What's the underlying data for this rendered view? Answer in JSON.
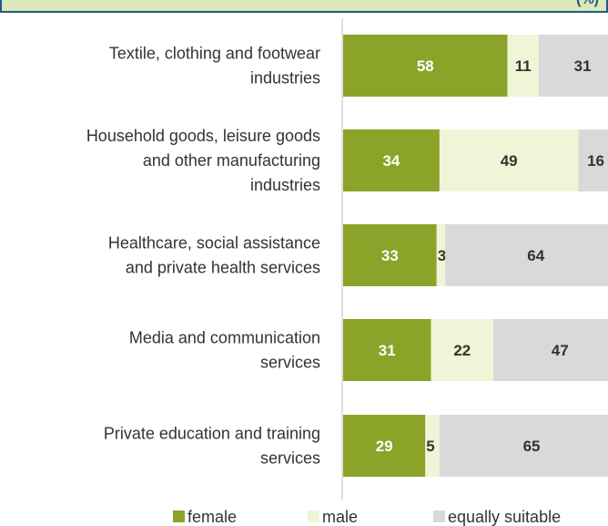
{
  "chart_data": {
    "type": "bar",
    "orientation": "horizontal",
    "stacked": true,
    "title": "",
    "xlabel": "",
    "ylabel": "",
    "xlim": [
      0,
      100
    ],
    "grid": false,
    "legend_position": "bottom",
    "categories": [
      [
        "Textile, clothing and footwear",
        "industries"
      ],
      [
        "Household goods, leisure goods",
        "and other manufacturing",
        "industries"
      ],
      [
        "Healthcare, social assistance",
        "and private health services"
      ],
      [
        "Media and communication",
        "services"
      ],
      [
        "Private education and training",
        "services"
      ]
    ],
    "series": [
      {
        "name": "female",
        "color": "#8ca32a",
        "label_color": "#ffffff",
        "values": [
          58,
          34,
          33,
          31,
          29
        ]
      },
      {
        "name": "male",
        "color": "#eff5d6",
        "label_color": "#333333",
        "values": [
          11,
          49,
          3,
          22,
          5
        ]
      },
      {
        "name": "equally suitable",
        "color": "#d9d9d9",
        "label_color": "#333333",
        "values": [
          31,
          16,
          64,
          47,
          65
        ]
      }
    ]
  },
  "header": {
    "title_fragment": "(%)",
    "accent_color": "#1f5a8c",
    "fill_color": "#dbe8b8"
  }
}
